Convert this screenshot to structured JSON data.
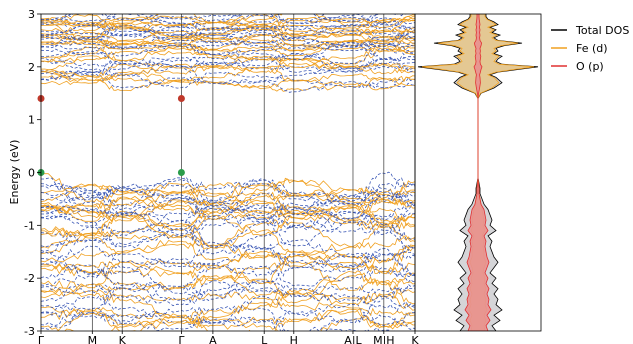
{
  "chart_data": [
    {
      "type": "line",
      "title": "",
      "xlabel": "",
      "ylabel": "Energy (eV)",
      "ylim": [
        -3,
        3
      ],
      "yticks": [
        -3,
        -2,
        -1,
        0,
        1,
        2,
        3
      ],
      "grid": false,
      "kpath": [
        {
          "label": "Γ",
          "pos": 0.0
        },
        {
          "label": "M",
          "pos": 0.163
        },
        {
          "label": "K",
          "pos": 0.258
        },
        {
          "label": "Γ",
          "pos": 0.446
        },
        {
          "label": "A",
          "pos": 0.546
        },
        {
          "label": "L",
          "pos": 0.709
        },
        {
          "label": "H",
          "pos": 0.803
        },
        {
          "label": "A|L",
          "pos": 0.991
        },
        {
          "label": "M|H",
          "pos": 1.089
        },
        {
          "label": "K",
          "pos": 1.188
        }
      ],
      "series": [
        {
          "name": "",
          "style": "solid",
          "color": "#f0a020"
        },
        {
          "name": "",
          "style": "dashed",
          "color": "#3a57b5"
        }
      ],
      "vbm": {
        "color": "#2a9d4a",
        "points": [
          {
            "k": 0.0,
            "energy": 0.0
          },
          {
            "k": 0.446,
            "energy": 0.0
          }
        ]
      },
      "cbm": {
        "color": "#c0392b",
        "points": [
          {
            "k": 0.0,
            "energy": 1.4
          },
          {
            "k": 0.446,
            "energy": 1.4
          }
        ]
      }
    },
    {
      "type": "area",
      "title": "",
      "ylim": [
        -3,
        3
      ],
      "legend": "top-right",
      "series": [
        {
          "name": "Total DOS",
          "color": "#000000",
          "fill": "#d0d0d4",
          "energy": [
            -3.0,
            -2.9,
            -2.8,
            -2.7,
            -2.6,
            -2.5,
            -2.4,
            -2.3,
            -2.2,
            -2.1,
            -2.0,
            -1.9,
            -1.8,
            -1.7,
            -1.6,
            -1.5,
            -1.4,
            -1.3,
            -1.2,
            -1.1,
            -1.0,
            -0.9,
            -0.8,
            -0.7,
            -0.6,
            -0.5,
            -0.4,
            -0.3,
            -0.2,
            -0.1,
            0.0,
            0.1,
            0.5,
            1.0,
            1.4,
            1.5,
            1.6,
            1.7,
            1.8,
            1.85,
            1.9,
            1.95,
            2.0,
            2.05,
            2.1,
            2.15,
            2.2,
            2.25,
            2.3,
            2.35,
            2.4,
            2.45,
            2.5,
            2.55,
            2.6,
            2.65,
            2.7,
            2.75,
            2.8,
            2.85,
            2.9,
            2.95,
            3.0
          ],
          "values": [
            0.9,
            0.7,
            1.1,
            0.8,
            1.2,
            0.9,
            1.0,
            0.8,
            1.0,
            0.7,
            0.9,
            0.6,
            0.8,
            1.0,
            0.8,
            0.7,
            0.6,
            0.7,
            0.5,
            0.9,
            0.6,
            0.7,
            0.6,
            0.5,
            0.3,
            0.2,
            0.1,
            0.1,
            0.05,
            0.0,
            0.0,
            0.0,
            0.0,
            0.0,
            0.0,
            0.15,
            0.8,
            1.2,
            0.9,
            0.6,
            1.0,
            2.0,
            3.0,
            1.2,
            0.9,
            1.0,
            1.2,
            0.8,
            1.0,
            0.9,
            1.3,
            2.2,
            1.0,
            0.8,
            1.1,
            0.7,
            0.9,
            0.6,
            1.0,
            0.8,
            0.5,
            0.4,
            0.4
          ]
        },
        {
          "name": "Fe (d)",
          "color": "#f0a020",
          "fill": "#e5c68c",
          "energy": [
            -3.0,
            -2.9,
            -2.8,
            -2.7,
            -2.6,
            -2.5,
            -2.4,
            -2.3,
            -2.2,
            -2.1,
            -2.0,
            -1.9,
            -1.8,
            -1.7,
            -1.6,
            -1.5,
            -1.4,
            -1.3,
            -1.2,
            -1.1,
            -1.0,
            -0.9,
            -0.8,
            -0.7,
            -0.6,
            -0.5,
            -0.4,
            -0.3,
            -0.2,
            -0.1,
            0.0,
            0.1,
            0.5,
            1.0,
            1.4,
            1.5,
            1.6,
            1.7,
            1.8,
            1.85,
            1.9,
            1.95,
            2.0,
            2.05,
            2.1,
            2.15,
            2.2,
            2.25,
            2.3,
            2.35,
            2.4,
            2.45,
            2.5,
            2.55,
            2.6,
            2.65,
            2.7,
            2.75,
            2.8,
            2.85,
            2.9,
            2.95,
            3.0
          ],
          "values": [
            0.35,
            0.3,
            0.4,
            0.3,
            0.45,
            0.35,
            0.4,
            0.3,
            0.4,
            0.3,
            0.35,
            0.25,
            0.3,
            0.4,
            0.3,
            0.3,
            0.25,
            0.3,
            0.2,
            0.35,
            0.25,
            0.3,
            0.25,
            0.2,
            0.15,
            0.1,
            0.05,
            0.05,
            0.03,
            0.0,
            0.0,
            0.0,
            0.0,
            0.0,
            0.0,
            0.12,
            0.7,
            1.05,
            0.8,
            0.5,
            0.9,
            1.8,
            2.8,
            1.05,
            0.8,
            0.9,
            1.05,
            0.7,
            0.9,
            0.8,
            1.15,
            2.0,
            0.9,
            0.7,
            0.95,
            0.6,
            0.8,
            0.5,
            0.9,
            0.7,
            0.45,
            0.35,
            0.35
          ]
        },
        {
          "name": "O (p)",
          "color": "#e03030",
          "fill": "#e89090",
          "energy": [
            -3.0,
            -2.9,
            -2.8,
            -2.7,
            -2.6,
            -2.5,
            -2.4,
            -2.3,
            -2.2,
            -2.1,
            -2.0,
            -1.9,
            -1.8,
            -1.7,
            -1.6,
            -1.5,
            -1.4,
            -1.3,
            -1.2,
            -1.1,
            -1.0,
            -0.9,
            -0.8,
            -0.7,
            -0.6,
            -0.5,
            -0.4,
            -0.3,
            -0.2,
            -0.1,
            0.0,
            0.1,
            0.5,
            1.0,
            1.4,
            1.5,
            1.6,
            1.7,
            1.8,
            1.85,
            1.9,
            1.95,
            2.0,
            2.05,
            2.1,
            2.15,
            2.2,
            2.25,
            2.3,
            2.35,
            2.4,
            2.45,
            2.5,
            2.55,
            2.6,
            2.65,
            2.7,
            2.75,
            2.8,
            2.85,
            2.9,
            2.95,
            3.0
          ],
          "values": [
            0.5,
            0.4,
            0.6,
            0.45,
            0.65,
            0.5,
            0.55,
            0.45,
            0.55,
            0.4,
            0.5,
            0.35,
            0.45,
            0.55,
            0.45,
            0.4,
            0.35,
            0.4,
            0.3,
            0.5,
            0.35,
            0.4,
            0.35,
            0.3,
            0.15,
            0.1,
            0.05,
            0.05,
            0.02,
            0.0,
            0.0,
            0.0,
            0.0,
            0.0,
            0.0,
            0.03,
            0.08,
            0.12,
            0.1,
            0.08,
            0.12,
            0.15,
            0.2,
            0.12,
            0.1,
            0.12,
            0.14,
            0.1,
            0.12,
            0.1,
            0.15,
            0.18,
            0.1,
            0.08,
            0.1,
            0.08,
            0.1,
            0.07,
            0.1,
            0.08,
            0.06,
            0.05,
            0.05
          ]
        }
      ]
    }
  ]
}
